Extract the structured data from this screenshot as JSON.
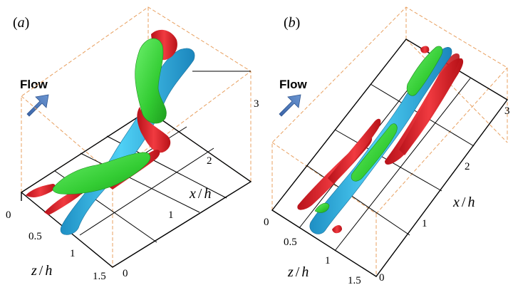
{
  "panels": [
    {
      "label": "a",
      "flow_label": "Flow",
      "x_axis": {
        "title_var": "x",
        "title_sep": "/",
        "title_unit": "h",
        "ticks": [
          "1",
          "2",
          "3"
        ]
      },
      "z_axis": {
        "title_var": "z",
        "title_sep": "/",
        "title_unit": "h",
        "ticks": [
          "0",
          "0.5",
          "1",
          "1.5"
        ]
      },
      "y_axis_tick": "0"
    },
    {
      "label": "b",
      "flow_label": "Flow",
      "x_axis": {
        "title_var": "x",
        "title_sep": "/",
        "title_unit": "h",
        "ticks": [
          "1",
          "2",
          "3"
        ]
      },
      "z_axis": {
        "title_var": "z",
        "title_sep": "/",
        "title_unit": "h",
        "ticks": [
          "0",
          "0.5",
          "1",
          "1.5"
        ]
      },
      "y_axis_tick": "0"
    }
  ],
  "colors": {
    "structure_red": "#e8222a",
    "structure_green": "#3ddc3d",
    "structure_cyan": "#2cb6e8",
    "flow_arrow": "#4a74b8",
    "box_dashed": "#e8a060"
  }
}
